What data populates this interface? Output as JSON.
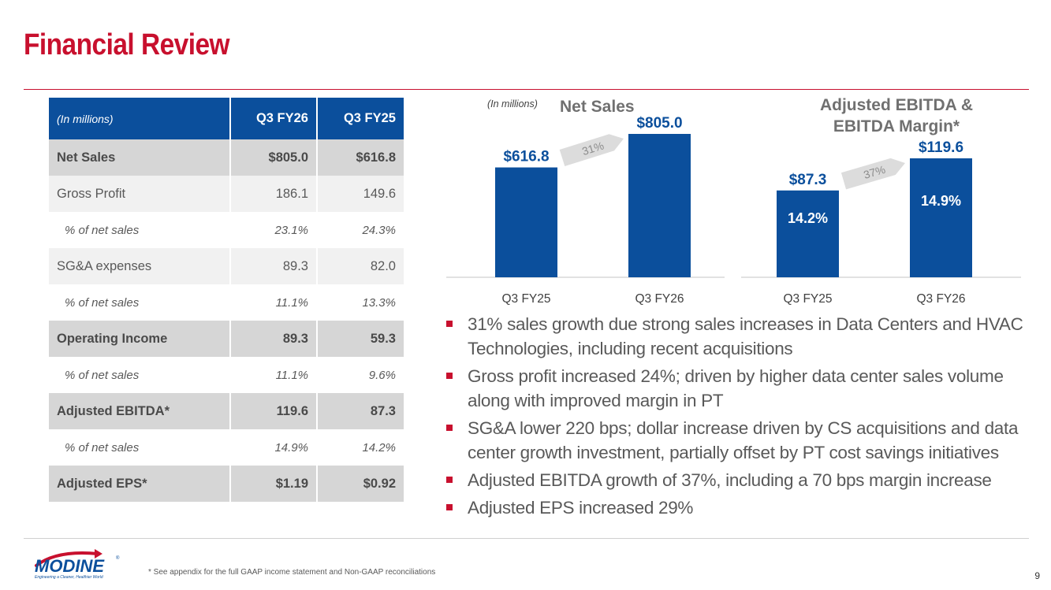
{
  "title": "Financial Review",
  "table": {
    "header": {
      "label": "(In millions)",
      "col1": "Q3 FY26",
      "col2": "Q3 FY25"
    },
    "rows": [
      {
        "label": "Net Sales",
        "v1": "$805.0",
        "v2": "$616.8",
        "style": "bold"
      },
      {
        "label": "Gross Profit",
        "v1": "186.1",
        "v2": "149.6",
        "style": "plain"
      },
      {
        "label": "% of net sales",
        "v1": "23.1%",
        "v2": "24.3%",
        "style": "pct"
      },
      {
        "label": "SG&A expenses",
        "v1": "89.3",
        "v2": "82.0",
        "style": "plain"
      },
      {
        "label": "% of net sales",
        "v1": "11.1%",
        "v2": "13.3%",
        "style": "pct"
      },
      {
        "label": "Operating Income",
        "v1": "89.3",
        "v2": "59.3",
        "style": "bold"
      },
      {
        "label": "% of net sales",
        "v1": "11.1%",
        "v2": "9.6%",
        "style": "pct"
      },
      {
        "label": "Adjusted EBITDA*",
        "v1": "119.6",
        "v2": "87.3",
        "style": "bold"
      },
      {
        "label": "% of net sales",
        "v1": "14.9%",
        "v2": "14.2%",
        "style": "pct"
      },
      {
        "label": "Adjusted EPS*",
        "v1": "$1.19",
        "v2": "$0.92",
        "style": "bold"
      }
    ]
  },
  "chart_data": [
    {
      "type": "bar",
      "title": "Net Sales",
      "units_note": "(In millions)",
      "categories": [
        "Q3 FY25",
        "Q3 FY26"
      ],
      "values": [
        616.8,
        805.0
      ],
      "value_labels": [
        "$616.8",
        "$805.0"
      ],
      "growth_label": "31%",
      "ylim": [
        0,
        805.0
      ]
    },
    {
      "type": "bar",
      "title": "Adjusted EBITDA & EBITDA Margin*",
      "title_lines": [
        "Adjusted EBITDA &",
        "EBITDA Margin*"
      ],
      "categories": [
        "Q3 FY25",
        "Q3 FY26"
      ],
      "values": [
        87.3,
        119.6
      ],
      "value_labels": [
        "$87.3",
        "$119.6"
      ],
      "margin_labels": [
        "14.2%",
        "14.9%"
      ],
      "growth_label": "37%",
      "ylim": [
        0,
        119.6
      ]
    }
  ],
  "bullets": [
    "31% sales growth due strong sales increases in Data Centers and HVAC Technologies, including recent acquisitions",
    "Gross profit increased 24%; driven by higher data center sales volume along with improved margin in PT",
    "SG&A lower 220 bps; dollar increase driven by CS acquisitions and data center growth investment, partially offset by PT cost savings initiatives",
    "Adjusted EBITDA growth of 37%, including a 70 bps margin increase",
    "Adjusted EPS increased 29%"
  ],
  "footer": {
    "logo_text": "MODINE",
    "tagline": "Engineering a Cleaner, Healthier World",
    "footnote": "* See appendix for the full GAAP income statement and Non-GAAP reconciliations",
    "page_number": "9"
  },
  "colors": {
    "brand_red": "#c8102e",
    "bar_blue": "#0b4f9c",
    "label_blue": "#0b4f9c",
    "text_gray": "#595959",
    "bold_row_gray": "#d6d6d6",
    "light_row_gray": "#f1f1f1"
  }
}
